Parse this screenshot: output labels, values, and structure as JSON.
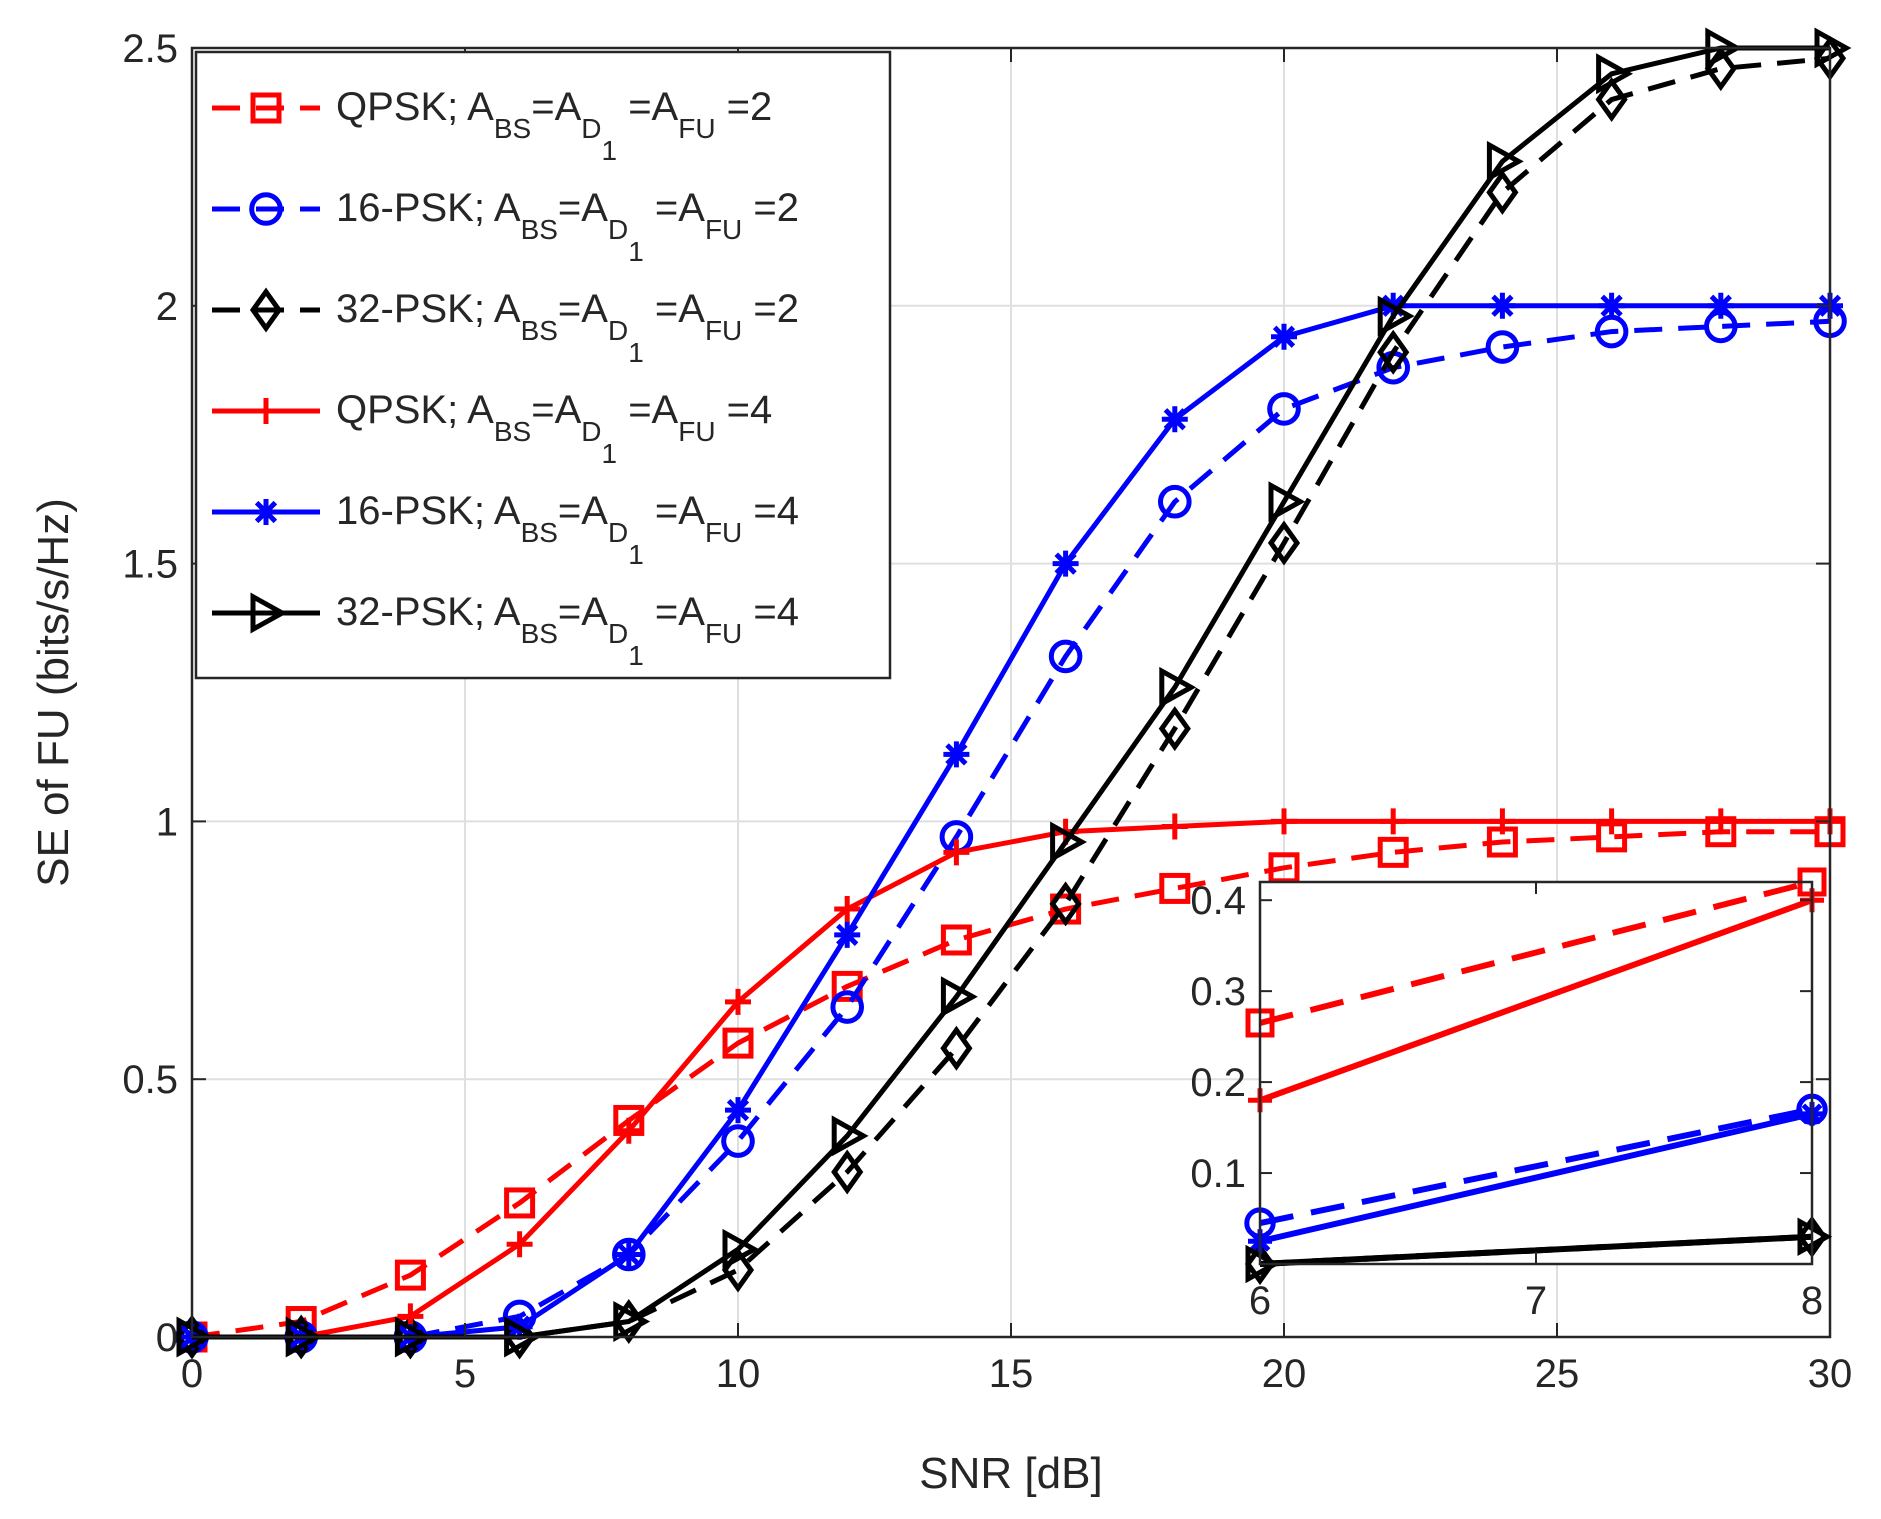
{
  "chart_data": {
    "type": "line",
    "title": "",
    "xlabel": "SNR [dB]",
    "ylabel": "SE of FU (bits/s/Hz)",
    "xlim": [
      0,
      30
    ],
    "ylim": [
      0,
      2.5
    ],
    "xticks": [
      0,
      5,
      10,
      15,
      20,
      25,
      30
    ],
    "yticks": [
      0,
      0.5,
      1,
      1.5,
      2,
      2.5
    ],
    "xtick_labels": [
      "0",
      "5",
      "10",
      "15",
      "20",
      "25",
      "30"
    ],
    "ytick_labels": [
      "0",
      "0.5",
      "1",
      "1.5",
      "2",
      "2.5"
    ],
    "grid": true,
    "legend_position": "top-left",
    "x": [
      0,
      2,
      4,
      6,
      8,
      10,
      12,
      14,
      16,
      18,
      20,
      22,
      24,
      26,
      28,
      30
    ],
    "series": [
      {
        "name": "QPSK; A_BS=A_D1=A_FU=2",
        "label": {
          "pre": "QPSK; ",
          "s1": "BS",
          "s2": "D",
          "s2b": "1",
          "s3": "FU",
          "val": "2"
        },
        "color": "#ff0000",
        "dashed": true,
        "marker": "square",
        "values": [
          0.0,
          0.03,
          0.12,
          0.26,
          0.42,
          0.57,
          0.68,
          0.77,
          0.83,
          0.87,
          0.91,
          0.94,
          0.96,
          0.97,
          0.98,
          0.98
        ]
      },
      {
        "name": "16-PSK; A_BS=A_D1=A_FU=2",
        "label": {
          "pre": "16-PSK; ",
          "s1": "BS",
          "s2": "D",
          "s2b": "1",
          "s3": "FU",
          "val": "2"
        },
        "color": "#0000ff",
        "dashed": true,
        "marker": "circle",
        "values": [
          0.0,
          0.0,
          0.0,
          0.04,
          0.16,
          0.38,
          0.64,
          0.97,
          1.32,
          1.62,
          1.8,
          1.88,
          1.92,
          1.95,
          1.96,
          1.97
        ]
      },
      {
        "name": "32-PSK; A_BS=A_D1=A_FU=2",
        "label": {
          "pre": "32-PSK; ",
          "s1": "BS",
          "s2": "D",
          "s2b": "1",
          "s3": "FU",
          "val": "2"
        },
        "color": "#000000",
        "dashed": true,
        "marker": "diamond",
        "values": [
          0.0,
          0.0,
          0.0,
          0.0,
          0.03,
          0.13,
          0.32,
          0.56,
          0.84,
          1.18,
          1.54,
          1.91,
          2.22,
          2.4,
          2.46,
          2.48
        ]
      },
      {
        "name": "QPSK; A_BS=A_D1=A_FU=4",
        "label": {
          "pre": "QPSK; ",
          "s1": "BS",
          "s2": "D",
          "s2b": "1",
          "s3": "FU",
          "val": "4"
        },
        "color": "#ff0000",
        "dashed": false,
        "marker": "plus",
        "values": [
          0.0,
          0.0,
          0.04,
          0.18,
          0.4,
          0.65,
          0.83,
          0.94,
          0.98,
          0.99,
          1.0,
          1.0,
          1.0,
          1.0,
          1.0,
          1.0
        ]
      },
      {
        "name": "16-PSK; A_BS=A_D1=A_FU=4",
        "label": {
          "pre": "16-PSK; ",
          "s1": "BS",
          "s2": "D",
          "s2b": "1",
          "s3": "FU",
          "val": "4"
        },
        "color": "#0000ff",
        "dashed": false,
        "marker": "asterisk",
        "values": [
          0.0,
          0.0,
          0.0,
          0.02,
          0.16,
          0.44,
          0.78,
          1.13,
          1.5,
          1.78,
          1.94,
          2.0,
          2.0,
          2.0,
          2.0,
          2.0
        ]
      },
      {
        "name": "32-PSK; A_BS=A_D1=A_FU=4",
        "label": {
          "pre": "32-PSK; ",
          "s1": "BS",
          "s2": "D",
          "s2b": "1",
          "s3": "FU",
          "val": "4"
        },
        "color": "#000000",
        "dashed": false,
        "marker": "triangle-right",
        "values": [
          0.0,
          0.0,
          0.0,
          0.0,
          0.03,
          0.17,
          0.39,
          0.66,
          0.96,
          1.26,
          1.62,
          1.98,
          2.28,
          2.45,
          2.5,
          2.5
        ]
      }
    ],
    "inset": {
      "xlim": [
        6,
        8
      ],
      "ylim": [
        0,
        0.42
      ],
      "xticks": [
        6,
        7,
        8
      ],
      "yticks": [
        0.1,
        0.2,
        0.3,
        0.4
      ],
      "xtick_labels": [
        "6",
        "7",
        "8"
      ],
      "ytick_labels": [
        "0.1",
        "0.2",
        "0.3",
        "0.4"
      ],
      "x": [
        6,
        8
      ],
      "series_values": [
        [
          0.265,
          0.42
        ],
        [
          0.045,
          0.17
        ],
        [
          0.0,
          0.03
        ],
        [
          0.18,
          0.4
        ],
        [
          0.025,
          0.165
        ],
        [
          0.0,
          0.03
        ]
      ]
    }
  }
}
